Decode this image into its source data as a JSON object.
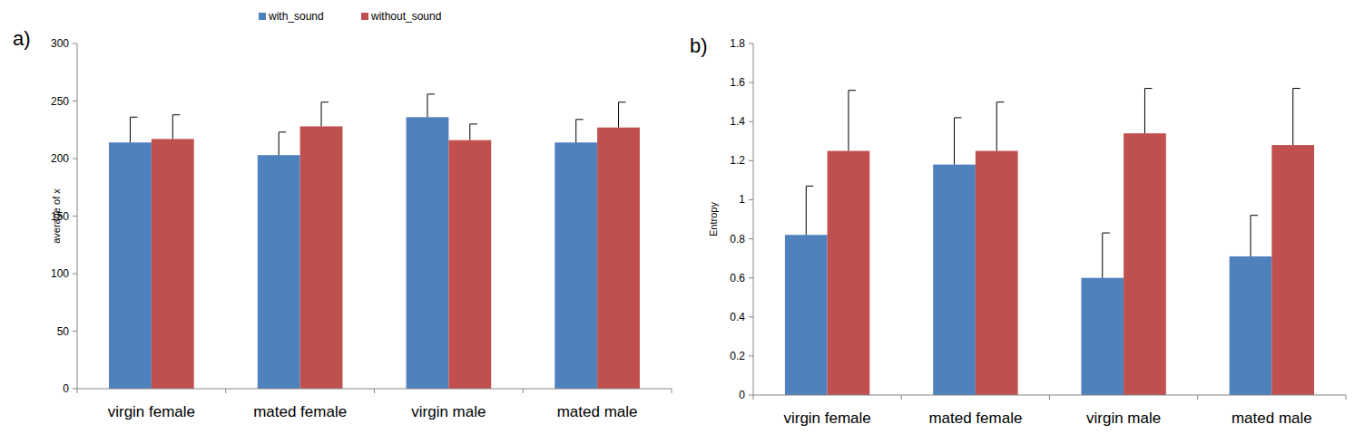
{
  "chart_data": [
    {
      "type": "bar",
      "title": "a)",
      "y_label": "average of x",
      "categories": [
        "virgin female",
        "mated female",
        "virgin male",
        "mated male"
      ],
      "series": [
        {
          "name": "with_sound",
          "color": "#4f81bd",
          "values": [
            214,
            203,
            236,
            214
          ],
          "errors": [
            22,
            20,
            20,
            20
          ]
        },
        {
          "name": "without_sound",
          "color": "#c0504d",
          "values": [
            217,
            228,
            216,
            227
          ],
          "errors": [
            21,
            21,
            14,
            22
          ]
        }
      ],
      "ylim": [
        0,
        300
      ],
      "yticks": [
        0,
        50,
        100,
        150,
        200,
        250,
        300
      ],
      "grid": false,
      "legend": "top"
    },
    {
      "type": "bar",
      "title": "b)",
      "y_label": "Entropy",
      "categories": [
        "virgin female",
        "mated female",
        "virgin male",
        "mated male"
      ],
      "series": [
        {
          "name": "with_sound",
          "color": "#4f81bd",
          "values": [
            0.82,
            1.18,
            0.6,
            0.71
          ],
          "errors": [
            0.25,
            0.24,
            0.23,
            0.21
          ]
        },
        {
          "name": "without_sound",
          "color": "#c0504d",
          "values": [
            1.25,
            1.25,
            1.34,
            1.28
          ],
          "errors": [
            0.31,
            0.25,
            0.23,
            0.29
          ]
        }
      ],
      "ylim": [
        0,
        1.8
      ],
      "yticks": [
        0,
        0.2,
        0.4,
        0.6,
        0.8,
        1,
        1.2,
        1.4,
        1.6,
        1.8
      ],
      "grid": false
    }
  ]
}
